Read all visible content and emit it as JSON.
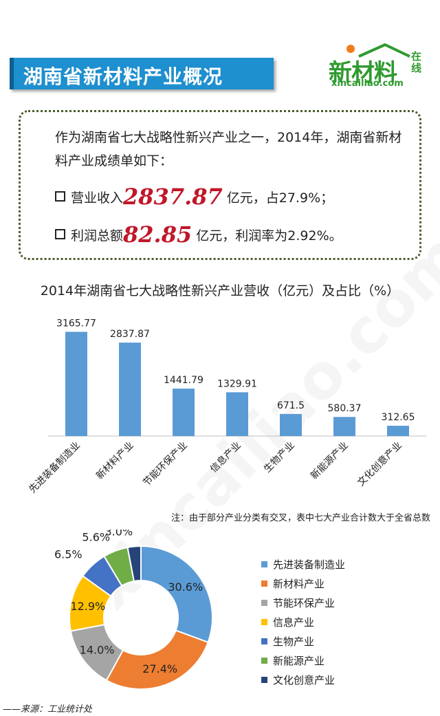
{
  "banner_title": "湖南省新材料产业概况",
  "logo": {
    "main": "新材料",
    "side": "在线",
    "url": "xincailiao.com"
  },
  "intro_text": "作为湖南省七大战略性新兴产业之一，2014年，湖南省新材料产业成绩单如下：",
  "bullets": [
    {
      "prefix": "营业收入",
      "value": "2837.87",
      "suffix": " 亿元，占27.9%；"
    },
    {
      "prefix": "利润总额",
      "value": "82.85",
      "suffix": " 亿元，利润率为2.92%。"
    }
  ],
  "chart_data": [
    {
      "type": "bar",
      "title": "2014年湖南省七大战略性新兴产业营收（亿元）及占比（%）",
      "categories": [
        "先进装备制造业",
        "新材料产业",
        "节能环保产业",
        "信息产业",
        "生物产业",
        "新能源产业",
        "文化创意产业"
      ],
      "values": [
        3165.77,
        2837.87,
        1441.79,
        1329.91,
        671.5,
        580.37,
        312.65
      ],
      "value_labels": [
        "3165.77",
        "2837.87",
        "1441.79",
        "1329.91",
        "671.5",
        "580.37",
        "312.65"
      ],
      "ylim": [
        0,
        3300
      ],
      "color": "#5b9bd5",
      "grid": false
    },
    {
      "type": "pie",
      "donut": true,
      "labels": [
        "先进装备制造业",
        "新材料产业",
        "节能环保产业",
        "信息产业",
        "生物产业",
        "新能源产业",
        "文化创意产业"
      ],
      "values": [
        30.6,
        27.4,
        14.0,
        12.9,
        6.5,
        5.6,
        3.0
      ],
      "value_labels": [
        "30.6%",
        "27.4%",
        "14.0%",
        "12.9%",
        "6.5%",
        "5.6%",
        "3.0%"
      ],
      "colors": [
        "#5b9bd5",
        "#ed7d31",
        "#a5a5a5",
        "#ffc000",
        "#4472c4",
        "#70ad47",
        "#264478"
      ],
      "legend_position": "right"
    }
  ],
  "note": "注：由于部分产业分类有交叉，表中七大产业合计数大于全省总数",
  "source": "——来源：工业统计处"
}
